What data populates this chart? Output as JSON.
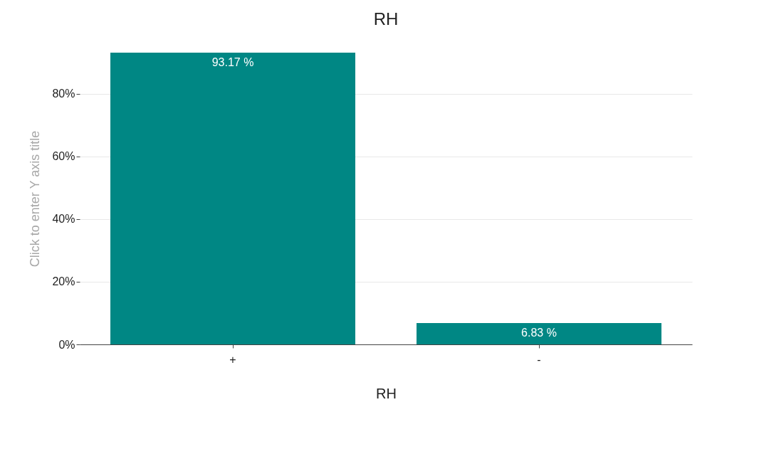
{
  "chart_data": {
    "type": "bar",
    "title": "RH",
    "xlabel": "RH",
    "ylabel": "Click to enter Y axis title",
    "categories": [
      "+",
      "-"
    ],
    "values": [
      93.17,
      6.83
    ],
    "color": "#008784",
    "value_labels": [
      "93.17 %",
      "6.83 %"
    ],
    "ylim": [
      0,
      93.17
    ],
    "yticks": [
      {
        "value": 0,
        "label": "0%"
      },
      {
        "value": 20,
        "label": "20%"
      },
      {
        "value": 40,
        "label": "40%"
      },
      {
        "value": 60,
        "label": "60%"
      },
      {
        "value": 80,
        "label": "80%"
      }
    ],
    "grid": "y"
  }
}
